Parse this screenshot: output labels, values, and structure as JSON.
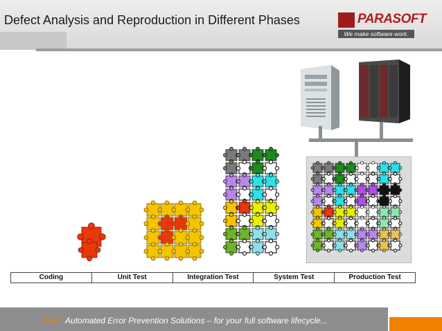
{
  "slide": {
    "title": "Defect Analysis and Reproduction in Different Phases"
  },
  "logo": {
    "name": "PARASOFT",
    "tagline": "We make software work."
  },
  "phases": [
    "Coding",
    "Unit Test",
    "Integration Test",
    "System Test",
    "Production Test"
  ],
  "footer": {
    "acronym": "AEP",
    "text": "Automated Error Prevention Solutions – for your full software lifecycle..."
  },
  "colors": {
    "accent_orange": "#f08000",
    "logo_red": "#b11d1d",
    "puzzle_red": "#e8380c",
    "puzzle_yellow": "#f5c400"
  },
  "icons": [
    "puzzle-piece-icon",
    "server-tower-icon",
    "mainframe-icon"
  ]
}
